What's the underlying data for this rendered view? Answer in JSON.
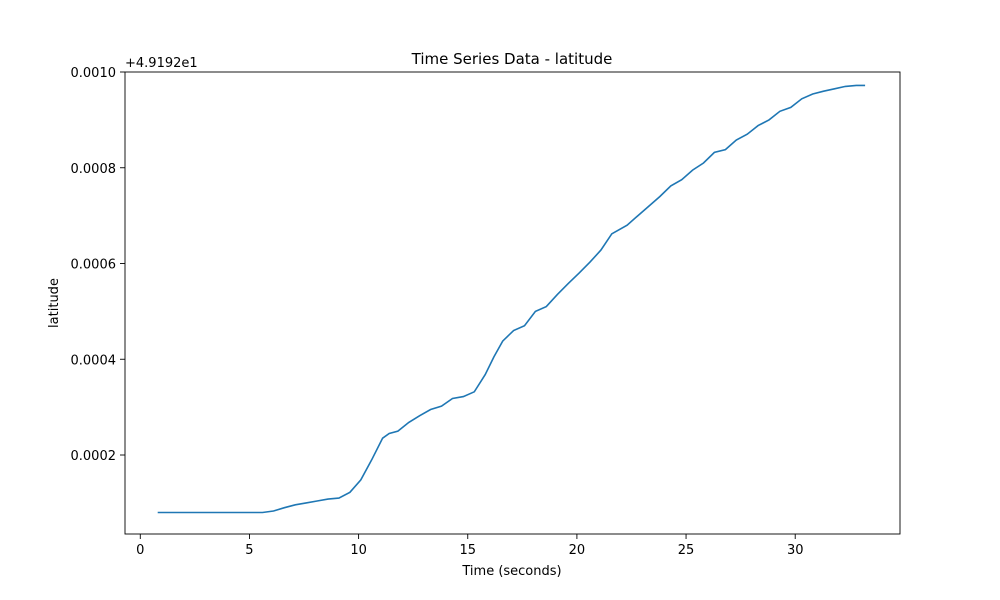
{
  "chart_data": {
    "type": "line",
    "title": "Time Series Data - latitude",
    "xlabel": "Time (seconds)",
    "ylabel": "latitude",
    "offset_label": "+4.9192e1",
    "xlim": [
      -0.7,
      34.8
    ],
    "ylim": [
      3.5e-05,
      0.001
    ],
    "xticks": [
      0,
      5,
      10,
      15,
      20,
      25,
      30
    ],
    "yticks": [
      0.0002,
      0.0004,
      0.0006,
      0.0008,
      0.001
    ],
    "xtick_labels": [
      "0",
      "5",
      "10",
      "15",
      "20",
      "25",
      "30"
    ],
    "ytick_labels": [
      "0.0002",
      "0.0004",
      "0.0006",
      "0.0008",
      "0.0010"
    ],
    "grid": false,
    "series": [
      {
        "color": "#1f77b4",
        "x": [
          0.8,
          2.0,
          3.0,
          4.0,
          5.0,
          5.6,
          6.1,
          6.6,
          7.1,
          7.6,
          8.1,
          8.6,
          9.1,
          9.6,
          10.1,
          10.6,
          11.1,
          11.4,
          11.8,
          12.3,
          12.8,
          13.3,
          13.8,
          14.3,
          14.8,
          15.3,
          15.8,
          16.2,
          16.6,
          17.1,
          17.6,
          18.1,
          18.6,
          19.1,
          19.6,
          20.1,
          20.6,
          21.1,
          21.6,
          22.3,
          22.8,
          23.3,
          23.8,
          24.3,
          24.8,
          25.3,
          25.8,
          26.3,
          26.8,
          27.3,
          27.8,
          28.3,
          28.8,
          29.3,
          29.8,
          30.3,
          30.8,
          31.3,
          31.8,
          32.3,
          32.8,
          33.2
        ],
        "y": [
          8e-05,
          8e-05,
          8e-05,
          8e-05,
          8e-05,
          8e-05,
          8.3e-05,
          9e-05,
          9.6e-05,
          0.0001,
          0.000104,
          0.000108,
          0.00011,
          0.000122,
          0.000148,
          0.00019,
          0.000235,
          0.000245,
          0.00025,
          0.000268,
          0.000282,
          0.000295,
          0.000302,
          0.000318,
          0.000322,
          0.000332,
          0.000368,
          0.000405,
          0.000438,
          0.00046,
          0.00047,
          0.0005,
          0.00051,
          0.000535,
          0.000558,
          0.00058,
          0.000603,
          0.000628,
          0.000662,
          0.00068,
          0.0007,
          0.00072,
          0.00074,
          0.000762,
          0.000775,
          0.000795,
          0.00081,
          0.000832,
          0.000838,
          0.000858,
          0.00087,
          0.000888,
          0.0009,
          0.000918,
          0.000926,
          0.000944,
          0.000954,
          0.00096,
          0.000965,
          0.00097,
          0.000972,
          0.000972
        ]
      }
    ]
  }
}
